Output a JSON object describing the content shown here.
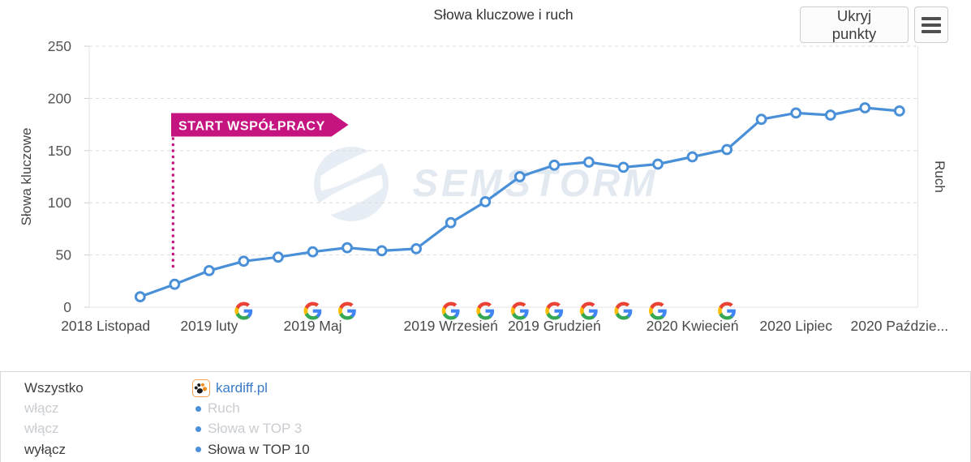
{
  "toolbar": {
    "hide_points_label": "Ukryj punkty",
    "menu_icon": "hamburger-icon"
  },
  "chart_data": {
    "type": "line",
    "title": "Słowa kluczowe i ruch",
    "ylabel_left": "Słowa kluczowe",
    "ylabel_right": "Ruch",
    "ylim": [
      0,
      250
    ],
    "yticks": [
      0,
      50,
      100,
      150,
      200,
      250
    ],
    "grid": "horizontal-dashed",
    "legend_position": "bottom-panel",
    "categories": [
      "2018-11",
      "2018-12",
      "2019-01",
      "2019-02",
      "2019-03",
      "2019-04",
      "2019-05",
      "2019-06",
      "2019-07",
      "2019-08",
      "2019-09",
      "2019-10",
      "2019-11",
      "2019-12",
      "2020-01",
      "2020-02",
      "2020-03",
      "2020-04",
      "2020-05",
      "2020-06",
      "2020-07",
      "2020-08",
      "2020-09",
      "2020-10"
    ],
    "x_ticks": [
      {
        "index": 0,
        "label": "2018 Listopad"
      },
      {
        "index": 3,
        "label": "2019 luty"
      },
      {
        "index": 6,
        "label": "2019 Maj"
      },
      {
        "index": 10,
        "label": "2019 Wrzesień"
      },
      {
        "index": 13,
        "label": "2019 Grudzień"
      },
      {
        "index": 17,
        "label": "2020 Kwiecień"
      },
      {
        "index": 20,
        "label": "2020 Lipiec"
      },
      {
        "index": 23,
        "label": "2020 Paździe..."
      }
    ],
    "series": [
      {
        "name": "Słowa w TOP 10 — kardiff.pl",
        "color": "#4a90d8",
        "point_style": "open-circle",
        "values": [
          null,
          10,
          22,
          35,
          44,
          48,
          53,
          57,
          54,
          56,
          81,
          101,
          125,
          136,
          139,
          134,
          137,
          144,
          151,
          180,
          186,
          184,
          191,
          188
        ]
      }
    ],
    "annotation": {
      "label": "START WSPÓŁPRACY",
      "month": "2019-01",
      "index": 2,
      "color": "#c51380",
      "style": "flag-banner-with-dotted-vertical-line"
    },
    "google_update_markers": {
      "icon": "google-g-icon",
      "indices": [
        4,
        6,
        7,
        10,
        11,
        12,
        13,
        14,
        15,
        16,
        18
      ]
    },
    "watermark": {
      "text": "SEMSTORM",
      "icon": "globe-icon"
    }
  },
  "legend": {
    "toggles": [
      {
        "label": "Wszystko",
        "muted": false
      },
      {
        "label": "włącz",
        "muted": true
      },
      {
        "label": "włącz",
        "muted": true
      },
      {
        "label": "wyłącz",
        "muted": false
      }
    ],
    "site": {
      "label": "kardiff.pl",
      "icon": "paw-favicon"
    },
    "items": [
      {
        "label": "Ruch",
        "muted": true
      },
      {
        "label": "Słowa w TOP 3",
        "muted": true
      },
      {
        "label": "Słowa w TOP 10",
        "muted": false
      }
    ]
  },
  "colors": {
    "line": "#4a90d8",
    "accent_pink": "#c51380",
    "muted_text": "#c9cdd1",
    "text": "#3c3c3c",
    "link": "#3b7bc8",
    "grid": "#dcdcdc"
  }
}
